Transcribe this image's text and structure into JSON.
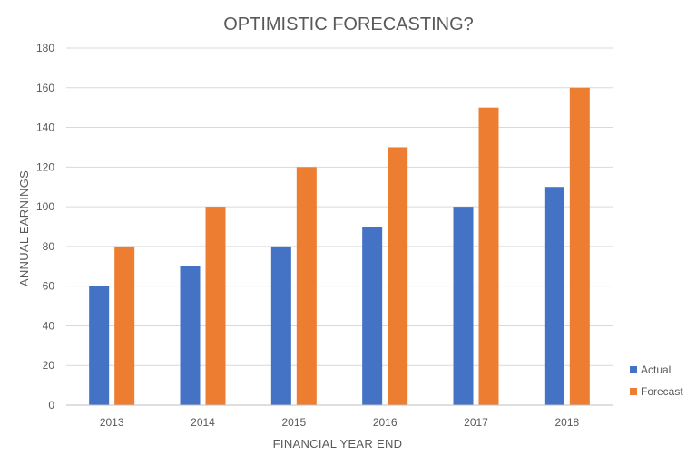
{
  "chart_data": {
    "type": "bar",
    "title": "OPTIMISTIC FORECASTING?",
    "xlabel": "FINANCIAL YEAR END",
    "ylabel": "ANNUAL EARNINGS",
    "categories": [
      "2013",
      "2014",
      "2015",
      "2016",
      "2017",
      "2018"
    ],
    "series": [
      {
        "name": "Actual",
        "color": "#4472c4",
        "values": [
          60,
          70,
          80,
          90,
          100,
          110
        ]
      },
      {
        "name": "Forecast",
        "color": "#ed7d31",
        "values": [
          80,
          100,
          120,
          130,
          150,
          160
        ]
      }
    ],
    "ylim": [
      0,
      180
    ],
    "yticks": [
      "0",
      "20",
      "40",
      "60",
      "80",
      "100",
      "120",
      "140",
      "160",
      "180"
    ],
    "grid": true,
    "legend": "right"
  }
}
